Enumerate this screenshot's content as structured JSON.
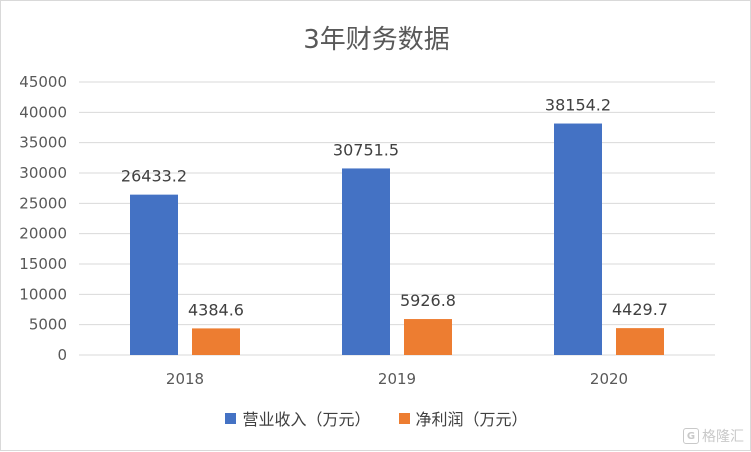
{
  "chart_data": {
    "type": "bar",
    "title": "3年财务数据",
    "categories": [
      "2018",
      "2019",
      "2020"
    ],
    "series": [
      {
        "name": "营业收入（万元）",
        "values": [
          26433.2,
          30751.5,
          38154.2
        ],
        "color": "#4472c4"
      },
      {
        "name": "净利润（万元）",
        "values": [
          4384.6,
          5926.8,
          4429.7
        ],
        "color": "#ed7d31"
      }
    ],
    "yticks": [
      "0",
      "5000",
      "10000",
      "15000",
      "20000",
      "25000",
      "30000",
      "35000",
      "40000",
      "45000"
    ],
    "ylim": [
      0,
      45000
    ],
    "grid": true,
    "legend_position": "bottom"
  },
  "watermark": {
    "logo": "G",
    "text": "格隆汇"
  }
}
